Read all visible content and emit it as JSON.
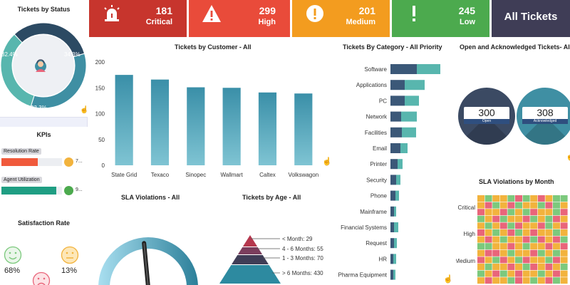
{
  "cards": [
    {
      "value": "181",
      "label": "Critical",
      "color": "#c7352d",
      "icon": "siren-icon"
    },
    {
      "value": "299",
      "label": "High",
      "color": "#e94b3a",
      "icon": "warning-icon"
    },
    {
      "value": "201",
      "label": "Medium",
      "color": "#f39c1f",
      "icon": "exclamation-circle-icon"
    },
    {
      "value": "245",
      "label": "Low",
      "color": "#4caa4e",
      "icon": "exclamation-icon"
    }
  ],
  "all_tickets": {
    "label": "All Tickets",
    "color": "#3f3d56"
  },
  "status_panel": {
    "title": "Tickets by Status",
    "slices": [
      {
        "label": "32.4%",
        "value": 32.4,
        "color": "#2c4a63"
      },
      {
        "label": "34.3%",
        "value": 34.3,
        "color": "#3f8fa3"
      },
      {
        "label": "33.3%",
        "value": 33.3,
        "color": "#58b6ae"
      }
    ],
    "center_icon": "support-agent-icon"
  },
  "kpis": {
    "title": "KPIs",
    "items": [
      {
        "label": "Resolution Rate",
        "value_text": "7...",
        "fraction": 0.6,
        "color": "#f05a3c",
        "dot_color": "#f2b33d"
      },
      {
        "label": "Agent Utilization",
        "value_text": "9...",
        "fraction": 0.9,
        "color": "#1f9e83",
        "dot_color": "#4caa4e"
      }
    ]
  },
  "satisfaction": {
    "title": "Satisfaction Rate",
    "items": [
      {
        "label": "68%",
        "icon": "smile-face-icon",
        "color": "#7cc97d"
      },
      {
        "label": "13%",
        "icon": "neutral-face-icon",
        "color": "#f2b33d"
      },
      {
        "label": "",
        "icon": "sad-face-icon",
        "color": "#e9657a"
      }
    ]
  },
  "customer_chart": {
    "title": "Tickets by Customer - All",
    "chart_data": {
      "type": "bar",
      "categories": [
        "State Grid",
        "Texaco",
        "Sinopec",
        "Wallmart",
        "Caltex",
        "Volkswagon"
      ],
      "values": [
        175,
        166,
        151,
        150,
        141,
        139
      ],
      "ylim": [
        0,
        200
      ],
      "yticks": [
        "0",
        "50",
        "100",
        "150",
        "200"
      ]
    }
  },
  "category_chart": {
    "title": "Tickets By Category - All Priority",
    "chart_data": {
      "type": "bar",
      "categories": [
        "Software",
        "Applications",
        "PC",
        "Network",
        "Facilities",
        "Email",
        "Printer",
        "Security",
        "Phone",
        "Mainframe",
        "Financial Systems",
        "Request",
        "HR",
        "Pharma Equipment"
      ],
      "series": [
        {
          "values": [
            37,
            20,
            20,
            15,
            16,
            14,
            10,
            8,
            7,
            5,
            5,
            5,
            4,
            4
          ],
          "color": "#3b5878"
        },
        {
          "values": [
            33,
            28,
            20,
            22,
            20,
            10,
            7,
            6,
            5,
            3,
            6,
            4,
            4,
            3
          ],
          "color": "#58b6ae"
        }
      ]
    }
  },
  "open_ack": {
    "title": "Open and Acknowledged Tickets- All",
    "items": [
      {
        "value": "300",
        "label": "Open",
        "circle": "#3b4a63"
      },
      {
        "value": "308",
        "label": "Acknowledged",
        "circle": "#3f8fa3"
      }
    ]
  },
  "sla_violations": {
    "title": "SLA Violations - All",
    "value_fraction": 0.47
  },
  "age_chart": {
    "title": "Tickets by Age - All",
    "labels": [
      "< Month: 29",
      "4 - 6 Months: 55",
      "1 - 3 Months: 70",
      "> 6 Months: 430"
    ],
    "colors": [
      "#b5374d",
      "#7a3d5c",
      "#3f3d56",
      "#2d8aa0"
    ]
  },
  "sla_month": {
    "title": "SLA Violations by Month",
    "rows": [
      "Critical",
      "High",
      "Medium"
    ],
    "palette": [
      "#f2b33d",
      "#e9657a",
      "#7cc97d"
    ]
  }
}
